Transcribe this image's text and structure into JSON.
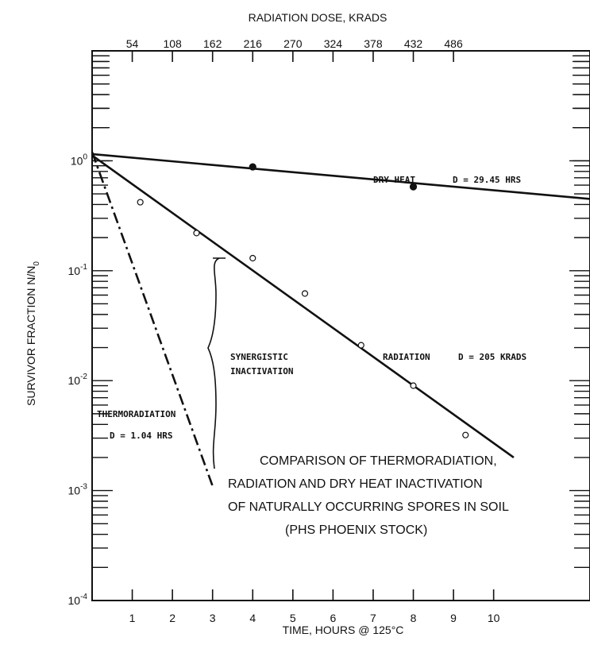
{
  "chart_data": {
    "type": "line",
    "title_lines": [
      "COMPARISON OF THERMORADIATION,",
      "RADIATION AND DRY HEAT  INACTIVATION",
      "OF NATURALLY OCCURRING SPORES IN SOIL",
      "(PHS PHOENIX STOCK)"
    ],
    "xlabel": "TIME, HOURS @ 125°C",
    "x2label": "RADIATION DOSE, KRADS",
    "ylabel": "SURVIVOR FRACTION  N/N",
    "ylabel_sub": "0",
    "x_ticks": [
      "1",
      "2",
      "3",
      "4",
      "5",
      "6",
      "7",
      "8",
      "9",
      "10"
    ],
    "x2_ticks": [
      "54",
      "108",
      "162",
      "216",
      "270",
      "324",
      "378",
      "432",
      "486"
    ],
    "y_ticks": [
      {
        "base": "10",
        "exp": "0",
        "value": 1
      },
      {
        "base": "10",
        "exp": "-1",
        "value": 0.1
      },
      {
        "base": "10",
        "exp": "-2",
        "value": 0.01
      },
      {
        "base": "10",
        "exp": "-3",
        "value": 0.001
      },
      {
        "base": "10",
        "exp": "-4",
        "value": 0.0001
      }
    ],
    "xlim": [
      0,
      12.4
    ],
    "ylim": [
      0.0001,
      10
    ],
    "y_scale": "log",
    "series": [
      {
        "name": "DRY HEAT",
        "annotation": "D = 29.45 HRS",
        "style": "solid",
        "line": [
          [
            0,
            1.15
          ],
          [
            12.4,
            0.45
          ]
        ],
        "points": [
          {
            "x": 4,
            "y": 0.88,
            "marker": "filled"
          },
          {
            "x": 8,
            "y": 0.58,
            "marker": "filled"
          }
        ]
      },
      {
        "name": "RADIATION",
        "annotation": "D = 205 KRADS",
        "style": "solid",
        "line": [
          [
            0,
            1.12
          ],
          [
            10.5,
            0.002
          ]
        ],
        "points": [
          {
            "x": 1.2,
            "y": 0.42
          },
          {
            "x": 2.6,
            "y": 0.22
          },
          {
            "x": 4,
            "y": 0.13
          },
          {
            "x": 5.3,
            "y": 0.062
          },
          {
            "x": 6.7,
            "y": 0.021
          },
          {
            "x": 8,
            "y": 0.009
          },
          {
            "x": 9.3,
            "y": 0.0032
          }
        ]
      },
      {
        "name": "THERMORADIATION",
        "annotation": "D = 1.04 HRS",
        "style": "dashdot",
        "line": [
          [
            0,
            1.2
          ],
          [
            3,
            0.0011
          ]
        ],
        "points": []
      }
    ],
    "annotations": [
      "SYNERGISTIC",
      "INACTIVATION"
    ]
  }
}
